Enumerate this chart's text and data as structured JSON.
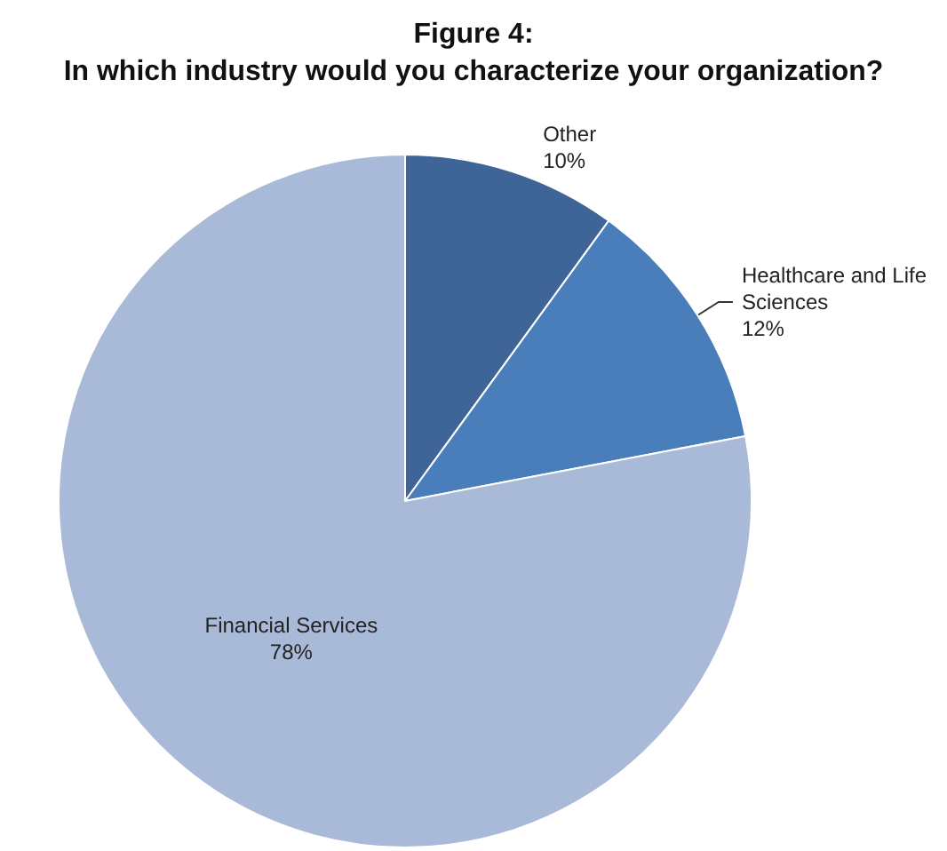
{
  "chart_data": {
    "type": "pie",
    "title": "Figure 4:\nIn which industry would you characterize your organization?",
    "categories": [
      "Other",
      "Healthcare and Life Sciences",
      "Financial Services"
    ],
    "values": [
      10,
      12,
      78
    ],
    "value_labels": [
      "10%",
      "12%",
      "78%"
    ],
    "colors": [
      "#3f6598",
      "#4a7ebb",
      "#a9b9d8"
    ]
  }
}
